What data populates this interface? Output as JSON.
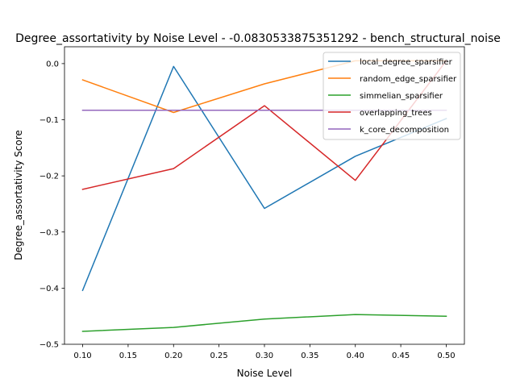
{
  "chart_data": {
    "type": "line",
    "title": "Degree_assortativity by Noise Level - -0.0830533875351292 - bench_structural_noise",
    "xlabel": "Noise Level",
    "ylabel": "Degree_assortativity Score",
    "x": [
      0.1,
      0.2,
      0.3,
      0.4,
      0.5
    ],
    "xlim": [
      0.08,
      0.52
    ],
    "ylim": [
      -0.5,
      0.03
    ],
    "xticks": [
      0.1,
      0.15,
      0.2,
      0.25,
      0.3,
      0.35,
      0.4,
      0.45,
      0.5
    ],
    "xtick_labels": [
      "0.10",
      "0.15",
      "0.20",
      "0.25",
      "0.30",
      "0.35",
      "0.40",
      "0.45",
      "0.50"
    ],
    "yticks": [
      -0.5,
      -0.4,
      -0.3,
      -0.2,
      -0.1,
      0.0
    ],
    "ytick_labels": [
      "−0.5",
      "−0.4",
      "−0.3",
      "−0.2",
      "−0.1",
      "0.0"
    ],
    "grid": false,
    "legend_position": "top-right",
    "series": [
      {
        "name": "local_degree_sparsifier",
        "color": "#1f77b4",
        "values": [
          -0.404,
          -0.005,
          -0.258,
          -0.165,
          -0.098
        ]
      },
      {
        "name": "random_edge_sparsifier",
        "color": "#ff7f0e",
        "values": [
          -0.029,
          -0.087,
          -0.036,
          0.005,
          0.005
        ]
      },
      {
        "name": "simmelian_sparsifier",
        "color": "#2ca02c",
        "values": [
          -0.477,
          -0.47,
          -0.455,
          -0.447,
          -0.45
        ]
      },
      {
        "name": "overlapping_trees",
        "color": "#d62728",
        "values": [
          -0.224,
          -0.187,
          -0.075,
          -0.208,
          0.005
        ]
      },
      {
        "name": "k_core_decomposition",
        "color": "#9467bd",
        "values": [
          -0.083,
          -0.083,
          -0.083,
          -0.083,
          -0.083
        ]
      }
    ]
  }
}
